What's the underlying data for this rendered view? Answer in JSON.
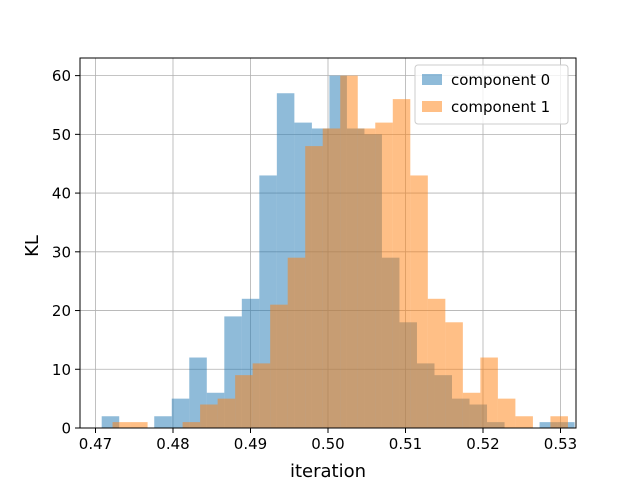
{
  "chart_data": {
    "type": "histogram",
    "title": "",
    "xlabel": "iteration",
    "ylabel": "KL",
    "xlim": [
      0.468,
      0.532
    ],
    "ylim": [
      0,
      63
    ],
    "xticks": [
      0.47,
      0.48,
      0.49,
      0.5,
      0.51,
      0.52,
      0.53
    ],
    "xtick_labels": [
      "0.47",
      "0.48",
      "0.49",
      "0.50",
      "0.51",
      "0.52",
      "0.53"
    ],
    "yticks": [
      0,
      10,
      20,
      30,
      40,
      50,
      60
    ],
    "ytick_labels": [
      "0",
      "10",
      "20",
      "30",
      "40",
      "50",
      "60"
    ],
    "grid": true,
    "legend_position": "top-right",
    "series": [
      {
        "name": "component 0",
        "color": "#1f77b4",
        "opacity": 0.5,
        "bin_start": 0.4708,
        "bin_width": 0.00226,
        "counts": [
          2,
          0,
          0,
          2,
          5,
          12,
          6,
          19,
          22,
          43,
          57,
          52,
          51,
          60,
          51,
          50,
          29,
          18,
          11,
          9,
          5,
          4,
          1,
          0,
          0,
          1,
          1
        ]
      },
      {
        "name": "component 1",
        "color": "#ff7f0e",
        "opacity": 0.5,
        "bin_start": 0.4722,
        "bin_width": 0.00226,
        "counts": [
          1,
          1,
          0,
          0,
          1,
          4,
          5,
          9,
          11,
          21,
          29,
          48,
          51,
          60,
          51,
          52,
          56,
          43,
          22,
          18,
          6,
          12,
          5,
          2,
          0,
          2
        ]
      }
    ]
  }
}
